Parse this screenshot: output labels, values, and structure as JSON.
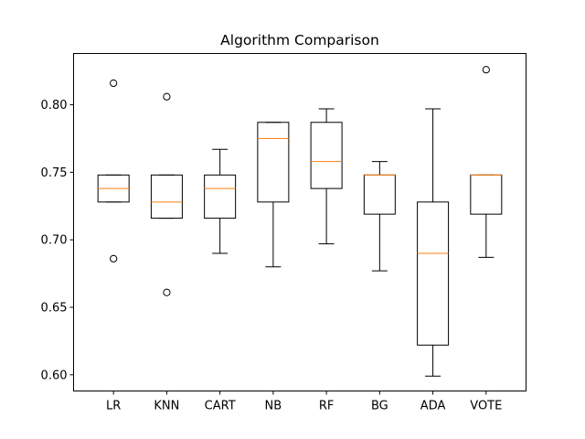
{
  "chart_data": {
    "type": "box",
    "title": "Algorithm Comparison",
    "xlabel": "",
    "ylabel": "",
    "ylim": [
      0.588,
      0.838
    ],
    "yticks": [
      0.6,
      0.65,
      0.7,
      0.75,
      0.8
    ],
    "ytick_labels": [
      "0.60",
      "0.65",
      "0.70",
      "0.75",
      "0.80"
    ],
    "grid": false,
    "colors": {
      "box": "#000000",
      "median": "#ff7f0e",
      "background": "#ffffff"
    },
    "categories": [
      "LR",
      "KNN",
      "CART",
      "NB",
      "RF",
      "BG",
      "ADA",
      "VOTE"
    ],
    "boxes": [
      {
        "name": "LR",
        "whislo": 0.728,
        "q1": 0.728,
        "med": 0.738,
        "q3": 0.748,
        "whishi": 0.748,
        "fliers": [
          0.816,
          0.686
        ]
      },
      {
        "name": "KNN",
        "whislo": 0.716,
        "q1": 0.716,
        "med": 0.728,
        "q3": 0.748,
        "whishi": 0.748,
        "fliers": [
          0.806,
          0.661
        ]
      },
      {
        "name": "CART",
        "whislo": 0.69,
        "q1": 0.716,
        "med": 0.738,
        "q3": 0.748,
        "whishi": 0.767,
        "fliers": []
      },
      {
        "name": "NB",
        "whislo": 0.68,
        "q1": 0.728,
        "med": 0.775,
        "q3": 0.787,
        "whishi": 0.787,
        "fliers": []
      },
      {
        "name": "RF",
        "whislo": 0.697,
        "q1": 0.738,
        "med": 0.758,
        "q3": 0.787,
        "whishi": 0.797,
        "fliers": []
      },
      {
        "name": "BG",
        "whislo": 0.677,
        "q1": 0.719,
        "med": 0.748,
        "q3": 0.748,
        "whishi": 0.758,
        "fliers": []
      },
      {
        "name": "ADA",
        "whislo": 0.599,
        "q1": 0.622,
        "med": 0.69,
        "q3": 0.728,
        "whishi": 0.797,
        "fliers": []
      },
      {
        "name": "VOTE",
        "whislo": 0.687,
        "q1": 0.719,
        "med": 0.748,
        "q3": 0.748,
        "whishi": 0.748,
        "fliers": [
          0.826
        ]
      }
    ]
  }
}
